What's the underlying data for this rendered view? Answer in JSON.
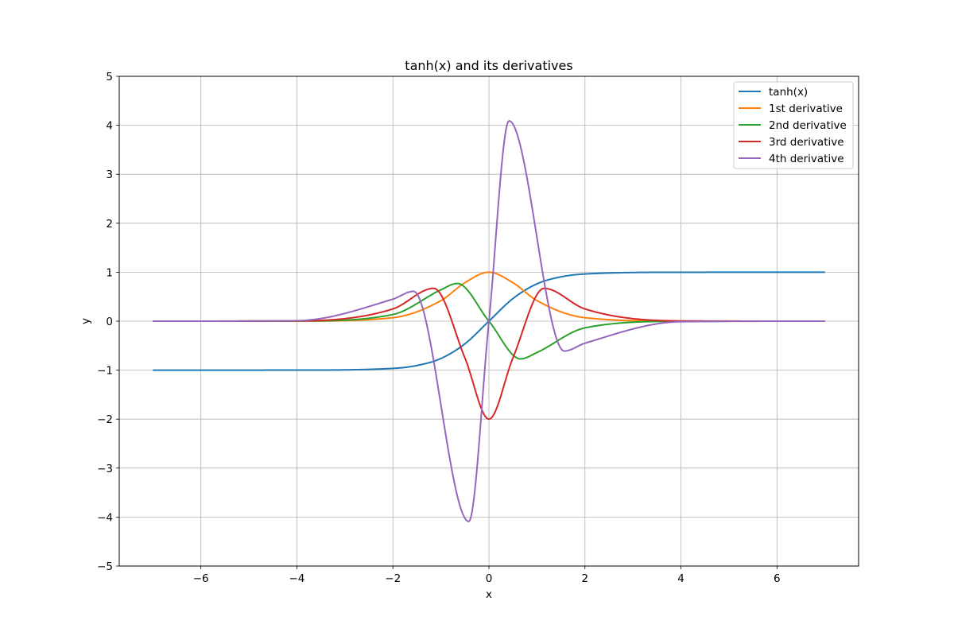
{
  "chart_data": {
    "type": "line",
    "title": "tanh(x) and its derivatives",
    "xlabel": "x",
    "ylabel": "y",
    "xlim": [
      -7.7,
      7.7
    ],
    "ylim": [
      -5,
      5
    ],
    "x_range": [
      -7,
      7
    ],
    "xticks": [
      -6,
      -4,
      -2,
      0,
      2,
      4,
      6
    ],
    "xtick_labels": [
      "−6",
      "−4",
      "−2",
      "0",
      "2",
      "4",
      "6"
    ],
    "yticks": [
      -5,
      -4,
      -3,
      -2,
      -1,
      0,
      1,
      2,
      3,
      4,
      5
    ],
    "ytick_labels": [
      "−5",
      "−4",
      "−3",
      "−2",
      "−1",
      "0",
      "1",
      "2",
      "3",
      "4",
      "5"
    ],
    "grid": true,
    "legend_position": "top-right",
    "series": [
      {
        "name": "tanh(x)",
        "color": "#1f77b4",
        "order": 0,
        "x": [
          -7,
          -4,
          -2,
          -1.5,
          -1,
          -0.5,
          0,
          0.5,
          1,
          1.5,
          2,
          4,
          7
        ],
        "y": [
          -1.0,
          -0.999,
          -0.964,
          -0.905,
          -0.762,
          -0.462,
          0,
          0.462,
          0.762,
          0.905,
          0.964,
          0.999,
          1.0
        ]
      },
      {
        "name": "1st derivative",
        "color": "#ff7f0e",
        "order": 1,
        "x": [
          -7,
          -4,
          -2,
          -1,
          -0.5,
          0,
          0.5,
          1,
          2,
          4,
          7
        ],
        "y": [
          0,
          0.001,
          0.071,
          0.42,
          0.786,
          1.0,
          0.786,
          0.42,
          0.071,
          0.001,
          0
        ]
      },
      {
        "name": "2nd derivative",
        "color": "#2ca02c",
        "order": 2,
        "x": [
          -7,
          -4,
          -2,
          -1,
          -0.66,
          0,
          0.66,
          1,
          2,
          4,
          7
        ],
        "y": [
          0,
          0.003,
          0.137,
          0.64,
          0.77,
          0,
          -0.77,
          -0.64,
          -0.137,
          -0.003,
          0
        ]
      },
      {
        "name": "3rd derivative",
        "color": "#d62728",
        "order": 3,
        "x": [
          -7,
          -4,
          -2,
          -1.15,
          -0.5,
          0,
          0.5,
          1.15,
          2,
          4,
          7
        ],
        "y": [
          0,
          0.005,
          0.25,
          0.67,
          -0.75,
          -2.0,
          -0.75,
          0.67,
          0.25,
          0.005,
          0
        ]
      },
      {
        "name": "4th derivative",
        "color": "#9467bd",
        "order": 4,
        "x": [
          -7,
          -4,
          -2,
          -1.57,
          -0.42,
          0,
          0.42,
          1.57,
          2,
          4,
          7
        ],
        "y": [
          0,
          0.01,
          0.45,
          0.61,
          -4.09,
          0,
          4.09,
          -0.61,
          -0.45,
          -0.01,
          0
        ]
      }
    ]
  }
}
